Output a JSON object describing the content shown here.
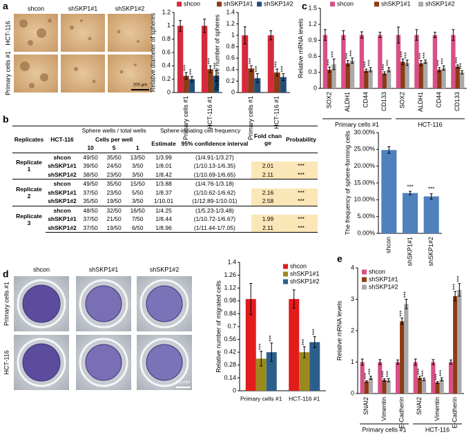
{
  "panel_labels": [
    "a",
    "b",
    "c",
    "d",
    "e"
  ],
  "panel_a_images": {
    "columns": [
      "shcon",
      "shSKP1#1",
      "shSKP1#2"
    ],
    "rows": [
      "HCT-116",
      "Primary cells #1"
    ],
    "scale_bar": "200 μm"
  },
  "panel_d_images": {
    "columns": [
      "shcon",
      "shSKP1#1",
      "shSKP1#2"
    ],
    "rows": [
      "Primary cells #1",
      "HCT-116"
    ],
    "scale_bar": "5.5 mM"
  },
  "table": {
    "header": [
      [
        "Replicates",
        "HCT-116",
        "Sphere wells / total wells",
        "Sphere-initiating cell frequency",
        "Fold change",
        "Probability"
      ],
      [
        "Cells per well",
        "Estimate",
        "95% confidence interval"
      ],
      [
        "10",
        "5",
        "1"
      ]
    ],
    "replicates": [
      {
        "label": "Replicate 1",
        "rows": [
          [
            "shcon",
            "49/50",
            "35/50",
            "13/50",
            "1/3.99",
            "(1/4.91-1/3.27)"
          ],
          [
            "shSKP1#1",
            "39/50",
            "24/50",
            "3/50",
            "1/8.01",
            "(1/10.13-1/6.35)",
            "2.01",
            "***"
          ],
          [
            "shSKP1#2",
            "38/50",
            "23/50",
            "3/50",
            "1/8.42",
            "(1/10.69-1/6.65)",
            "2.11",
            "***"
          ]
        ]
      },
      {
        "label": "Replicate 2",
        "rows": [
          [
            "shcon",
            "49/50",
            "35/50",
            "15/50",
            "1/3.88",
            "(1/4.76-1/3.18)"
          ],
          [
            "shSKP1#1",
            "37/50",
            "23/50",
            "5/50",
            "1/8.37",
            "(1/10.62-1/6.62)",
            "2.16",
            "***"
          ],
          [
            "shSKP1#2",
            "35/50",
            "19/50",
            "3/50",
            "1/10.01",
            "(1/12.89-1/10.01)",
            "2.58",
            "***"
          ]
        ]
      },
      {
        "label": "Replicate 3",
        "rows": [
          [
            "shcon",
            "48/50",
            "32/50",
            "16/50",
            "1/4.25",
            "(1/5.23-1/3.48)"
          ],
          [
            "shSKP1#1",
            "37/50",
            "21/50",
            "7/50",
            "1/8.44",
            "(1/10.72-1/6.67)",
            "1.99",
            "***"
          ],
          [
            "shSKP1#2",
            "37/50",
            "19/50",
            "6/50",
            "1/8.96",
            "(1/11.44-1/7.05)",
            "2.11",
            "***"
          ]
        ]
      }
    ]
  },
  "chart_data": [
    {
      "type": "bar",
      "ylabel": "Relative diameter of spheres",
      "categories": [
        "Primary cells #1",
        "HCT-116 #1"
      ],
      "series": [
        {
          "name": "shcon",
          "color": "#d62a3c",
          "values": [
            1,
            1
          ],
          "errors": [
            0.08,
            0.1
          ]
        },
        {
          "name": "shSKP1#1",
          "color": "#8b3b16",
          "values": [
            0.25,
            0.35
          ],
          "errors": [
            0.05,
            0.05
          ]
        },
        {
          "name": "shSKP1#2",
          "color": "#1f4f7a",
          "values": [
            0.2,
            0.25
          ],
          "errors": [
            0.04,
            0.08
          ]
        }
      ],
      "ylim": [
        0,
        1.2
      ],
      "yticks": [
        0,
        0.2,
        0.4,
        0.6,
        0.8,
        1,
        1.2
      ],
      "annotation": "***"
    },
    {
      "type": "bar",
      "ylabel": "Relative number of spheres",
      "categories": [
        "Primary cells #1",
        "HCT-116 #1"
      ],
      "series": [
        {
          "color": "#d62a3c",
          "values": [
            1,
            1
          ],
          "errors": [
            0.15,
            0.08
          ]
        },
        {
          "color": "#8b3b16",
          "values": [
            0.42,
            0.35
          ],
          "errors": [
            0.05,
            0.06
          ]
        },
        {
          "color": "#1f4f7a",
          "values": [
            0.25,
            0.27
          ],
          "errors": [
            0.08,
            0.06
          ]
        }
      ],
      "ylim": [
        0,
        1.4
      ],
      "yticks": [
        0,
        0.2,
        0.4,
        0.6,
        0.8,
        1,
        1.2,
        1.4
      ],
      "annotation": "***"
    },
    {
      "type": "bar",
      "ylabel": "Relative mRNA levels",
      "categories": [
        "SOX2",
        "ALDH1",
        "CD44",
        "CD133",
        "SOX2",
        "ALDH1",
        "CD44",
        "CD133"
      ],
      "groups": [
        "Primary cells #1",
        "HCT-116"
      ],
      "series": [
        {
          "name": "shcon",
          "color": "#d94f86",
          "values": [
            1,
            1,
            1,
            1,
            1,
            1,
            1,
            1
          ],
          "errors": [
            0.1,
            0.08,
            0.06,
            0.05,
            0.15,
            0.1,
            0.05,
            0.1
          ]
        },
        {
          "name": "shSKP1#1",
          "color": "#8b3b16",
          "values": [
            0.35,
            0.47,
            0.33,
            0.28,
            0.5,
            0.47,
            0.35,
            0.41
          ],
          "errors": [
            0.05,
            0.05,
            0.03,
            0.03,
            0.05,
            0.05,
            0.04,
            0.03
          ]
        },
        {
          "name": "shSKP1#2",
          "color": "#a9a9a9",
          "values": [
            0.45,
            0.52,
            0.35,
            0.35,
            0.48,
            0.5,
            0.38,
            0.3
          ],
          "errors": [
            0.1,
            0.05,
            0.04,
            0.04,
            0.05,
            0.03,
            0.04,
            0.03
          ]
        }
      ],
      "ylim": [
        0,
        1.5
      ],
      "yticks": [
        0,
        0.3,
        0.6,
        0.9,
        1.2,
        1.5
      ],
      "annotation": "***"
    },
    {
      "type": "bar",
      "ylabel": "The frequency of sphere-forming cells",
      "categories": [
        "shcon",
        "shSKP1#1",
        "shSKP1#2"
      ],
      "values": [
        24.8,
        12,
        11
      ],
      "errors": [
        1,
        0.5,
        0.8
      ],
      "color": "#4f81bd",
      "ylim": [
        0,
        30
      ],
      "yticks": [
        {
          "value": 0,
          "label": "0.00%"
        },
        {
          "value": 5,
          "label": "5.00%"
        },
        {
          "value": 10,
          "label": "10.00%"
        },
        {
          "value": 15,
          "label": "15.00%"
        },
        {
          "value": 20,
          "label": "20.00%"
        },
        {
          "value": 25,
          "label": "25.00%"
        },
        {
          "value": 30,
          "label": "30.00%"
        }
      ],
      "annotation": "***"
    },
    {
      "type": "bar",
      "ylabel": "Relative number of migrated cells",
      "categories": [
        "Primary cells #1",
        "HCT-116 #1"
      ],
      "series": [
        {
          "name": "shcon",
          "color": "#e31b1b",
          "values": [
            1,
            1
          ],
          "errors": [
            0.17,
            0.1
          ]
        },
        {
          "name": "shSKP1#1",
          "color": "#9a8a1e",
          "values": [
            0.35,
            0.42
          ],
          "errors": [
            0.08,
            0.06
          ]
        },
        {
          "name": "shSKP1#2",
          "color": "#2b5f8c",
          "values": [
            0.42,
            0.53
          ],
          "errors": [
            0.1,
            0.06
          ]
        }
      ],
      "ylim": [
        0,
        1.4
      ],
      "yticks": [
        0,
        0.14,
        0.28,
        0.42,
        0.56,
        0.7,
        0.84,
        0.98,
        1.12,
        1.26,
        1.4
      ],
      "annotation": "***"
    },
    {
      "type": "bar",
      "ylabel": "Relative mRNA levels",
      "categories": [
        "SNAI2",
        "Vimentin",
        "E-Cadherin",
        "SNAI2",
        "Vimentin",
        "E-Cadherin"
      ],
      "groups": [
        "Primary cells #1",
        "HCT-116"
      ],
      "series": [
        {
          "name": "shcon",
          "color": "#d94f86",
          "values": [
            1,
            1,
            1,
            1,
            1,
            1
          ],
          "errors": [
            0.1,
            0.08,
            0.07,
            0.1,
            0.08,
            0.07
          ]
        },
        {
          "name": "shSKP1#1",
          "color": "#8b3b16",
          "values": [
            0.38,
            0.43,
            2.3,
            0.5,
            0.35,
            3.1
          ],
          "errors": [
            0.03,
            0.04,
            0.1,
            0.05,
            0.03,
            0.15
          ]
        },
        {
          "name": "shSKP1#2",
          "color": "#a9a9a9",
          "values": [
            0.5,
            0.42,
            2.85,
            0.45,
            0.45,
            3.3
          ],
          "errors": [
            0.05,
            0.05,
            0.15,
            0.04,
            0.05,
            0.2
          ]
        }
      ],
      "ylim": [
        0,
        4
      ],
      "yticks": [
        0,
        1,
        2,
        3,
        4
      ],
      "annotation": "***"
    }
  ]
}
